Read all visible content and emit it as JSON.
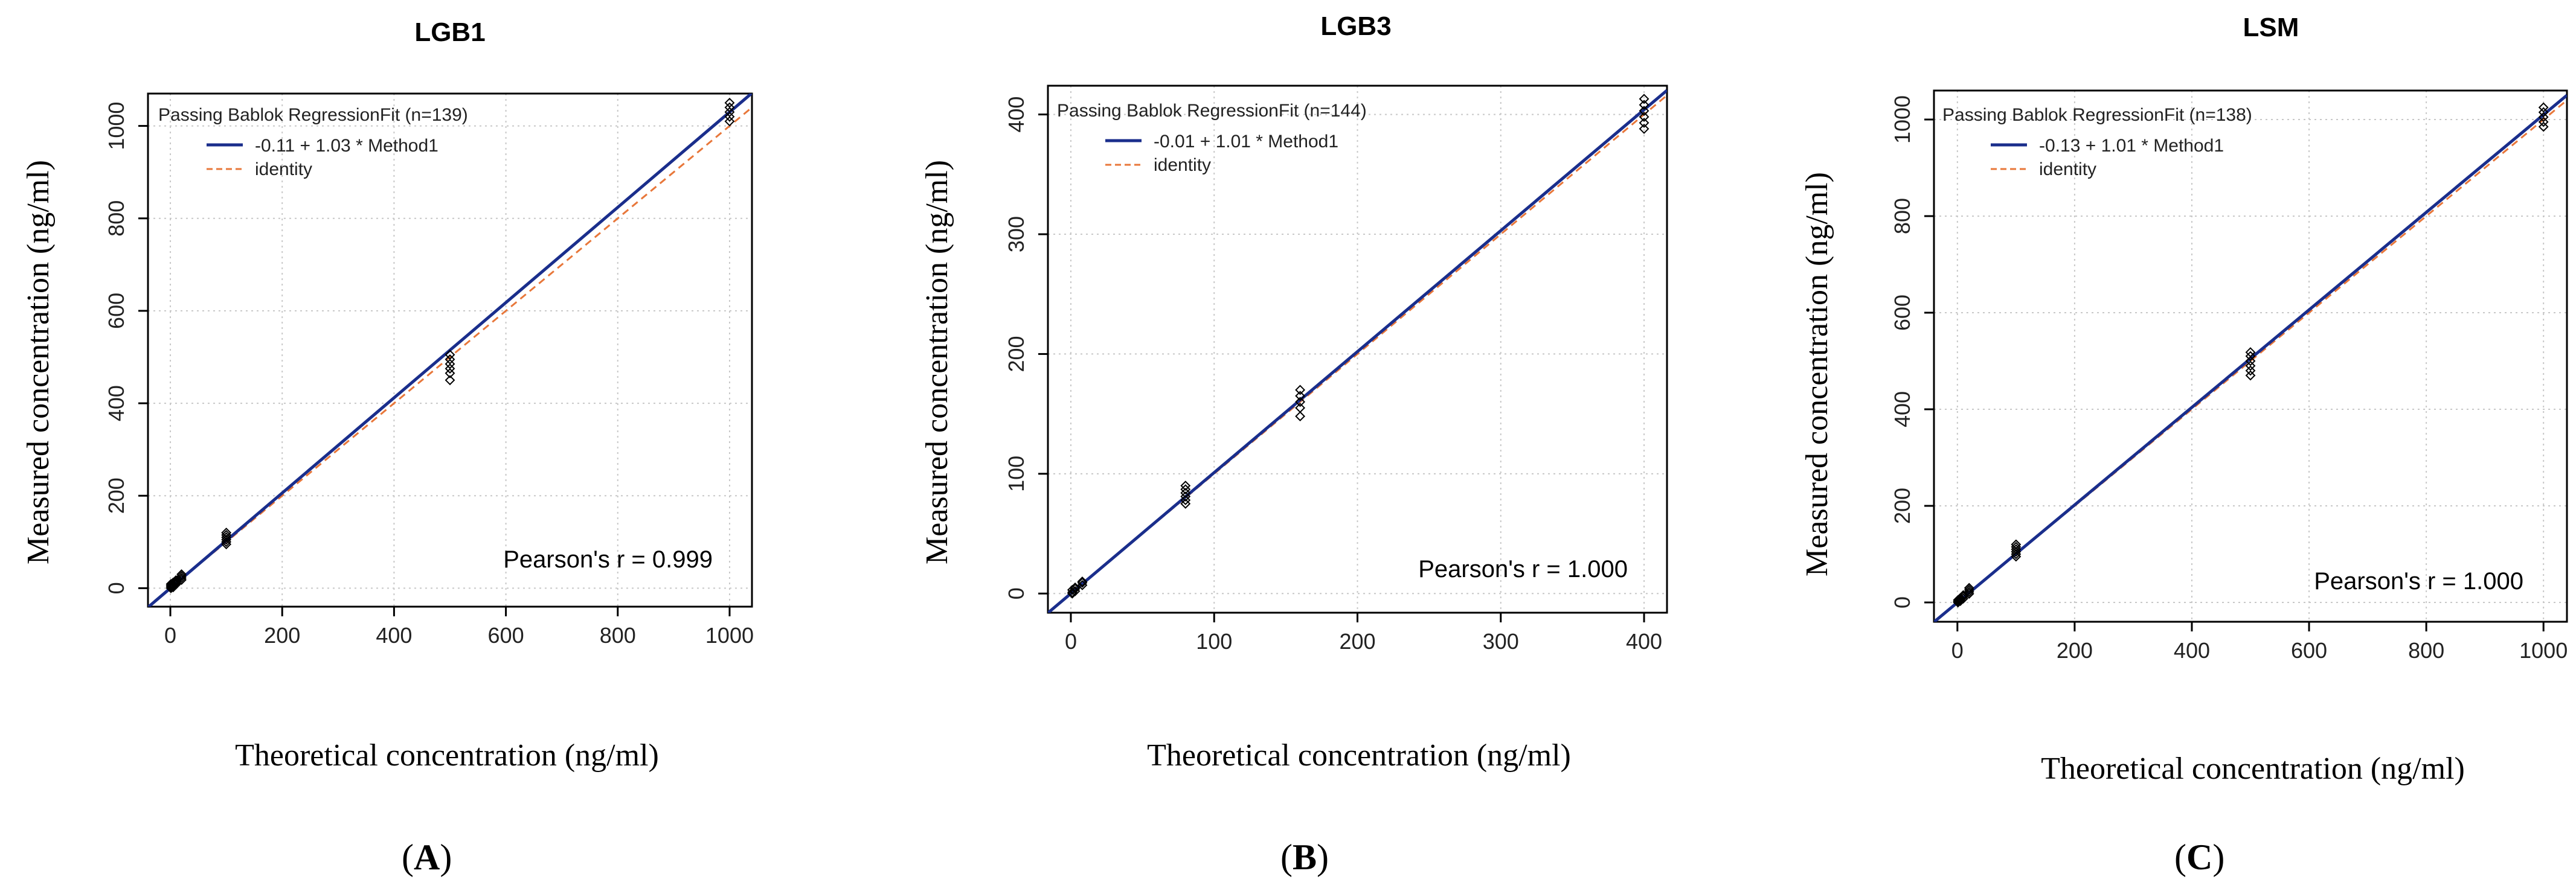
{
  "chart_data": [
    {
      "type": "scatter",
      "panel_label": "A",
      "title": "LGB1",
      "xlabel": "Theoretical concentration (ng/ml)",
      "ylabel": "Measured concentration (ng/ml)",
      "xlim": [
        -40,
        1040
      ],
      "ylim": [
        -40,
        1070
      ],
      "xticks": [
        "0",
        "200",
        "400",
        "600",
        "800",
        "1000"
      ],
      "xtick_values": [
        0,
        200,
        400,
        600,
        800,
        1000
      ],
      "yticks": [
        "0",
        "200",
        "400",
        "600",
        "800",
        "1000"
      ],
      "ytick_values": [
        0,
        200,
        400,
        600,
        800,
        1000
      ],
      "legend_title": "Passing Bablok RegressionFit (n=139)",
      "fit_label": "-0.11 + 1.03 * Method1",
      "identity_label": "identity",
      "fit": {
        "intercept": -0.11,
        "slope": 1.03
      },
      "pearson": "Pearson's r = 0.999",
      "points": [
        {
          "x": 1,
          "y": [
            0,
            3,
            6,
            9
          ]
        },
        {
          "x": 5,
          "y": [
            2,
            5,
            8,
            12
          ]
        },
        {
          "x": 10,
          "y": [
            8,
            11,
            14,
            17
          ]
        },
        {
          "x": 20,
          "y": [
            18,
            22,
            26,
            30
          ]
        },
        {
          "x": 100,
          "y": [
            95,
            100,
            105,
            110,
            115,
            120
          ]
        },
        {
          "x": 500,
          "y": [
            450,
            465,
            475,
            485,
            495,
            505
          ]
        },
        {
          "x": 1000,
          "y": [
            1010,
            1020,
            1030,
            1040,
            1050
          ]
        }
      ]
    },
    {
      "type": "scatter",
      "panel_label": "B",
      "title": "LGB3",
      "xlabel": "Theoretical concentration (ng/ml)",
      "ylabel": "Measured concentration (ng/ml)",
      "xlim": [
        -16,
        416
      ],
      "ylim": [
        -16,
        424
      ],
      "xticks": [
        "0",
        "100",
        "200",
        "300",
        "400"
      ],
      "xtick_values": [
        0,
        100,
        200,
        300,
        400
      ],
      "yticks": [
        "0",
        "100",
        "200",
        "300",
        "400"
      ],
      "ytick_values": [
        0,
        100,
        200,
        300,
        400
      ],
      "legend_title": "Passing Bablok RegressionFit (n=144)",
      "fit_label": "-0.01 + 1.01 * Method1",
      "identity_label": "identity",
      "fit": {
        "intercept": -0.01,
        "slope": 1.01
      },
      "pearson": "Pearson's r = 1.000",
      "points": [
        {
          "x": 1,
          "y": [
            0,
            1,
            3
          ]
        },
        {
          "x": 3,
          "y": [
            2,
            4,
            5
          ]
        },
        {
          "x": 8,
          "y": [
            7,
            9,
            10
          ]
        },
        {
          "x": 80,
          "y": [
            75,
            78,
            81,
            84,
            87,
            90
          ]
        },
        {
          "x": 160,
          "y": [
            148,
            155,
            160,
            165,
            170
          ]
        },
        {
          "x": 400,
          "y": [
            388,
            393,
            398,
            403,
            408,
            413
          ]
        }
      ]
    },
    {
      "type": "scatter",
      "panel_label": "C",
      "title": "LSM",
      "xlabel": "Theoretical concentration (ng/ml)",
      "ylabel": "Measured concentration (ng/ml)",
      "xlim": [
        -40,
        1040
      ],
      "ylim": [
        -40,
        1060
      ],
      "xticks": [
        "0",
        "200",
        "400",
        "600",
        "800",
        "1000"
      ],
      "xtick_values": [
        0,
        200,
        400,
        600,
        800,
        1000
      ],
      "yticks": [
        "0",
        "200",
        "400",
        "600",
        "800",
        "1000"
      ],
      "ytick_values": [
        0,
        200,
        400,
        600,
        800,
        1000
      ],
      "legend_title": "Passing Bablok RegressionFit (n=138)",
      "fit_label": "-0.13 + 1.01 * Method1",
      "identity_label": "identity",
      "fit": {
        "intercept": -0.13,
        "slope": 1.01
      },
      "pearson": "Pearson's r = 1.000",
      "points": [
        {
          "x": 1,
          "y": [
            0,
            2,
            5
          ]
        },
        {
          "x": 5,
          "y": [
            3,
            6,
            9
          ]
        },
        {
          "x": 10,
          "y": [
            8,
            12,
            15
          ]
        },
        {
          "x": 20,
          "y": [
            18,
            22,
            26,
            30
          ]
        },
        {
          "x": 100,
          "y": [
            95,
            100,
            105,
            110,
            115,
            120
          ]
        },
        {
          "x": 500,
          "y": [
            470,
            480,
            490,
            500,
            510,
            518
          ]
        },
        {
          "x": 1000,
          "y": [
            985,
            995,
            1005,
            1015,
            1025
          ]
        }
      ]
    }
  ],
  "colors": {
    "fit": "#1a2e8c",
    "identity": "#e8773a",
    "grid": "#c8c8c8",
    "points": "#000000",
    "axis": "#000000"
  }
}
